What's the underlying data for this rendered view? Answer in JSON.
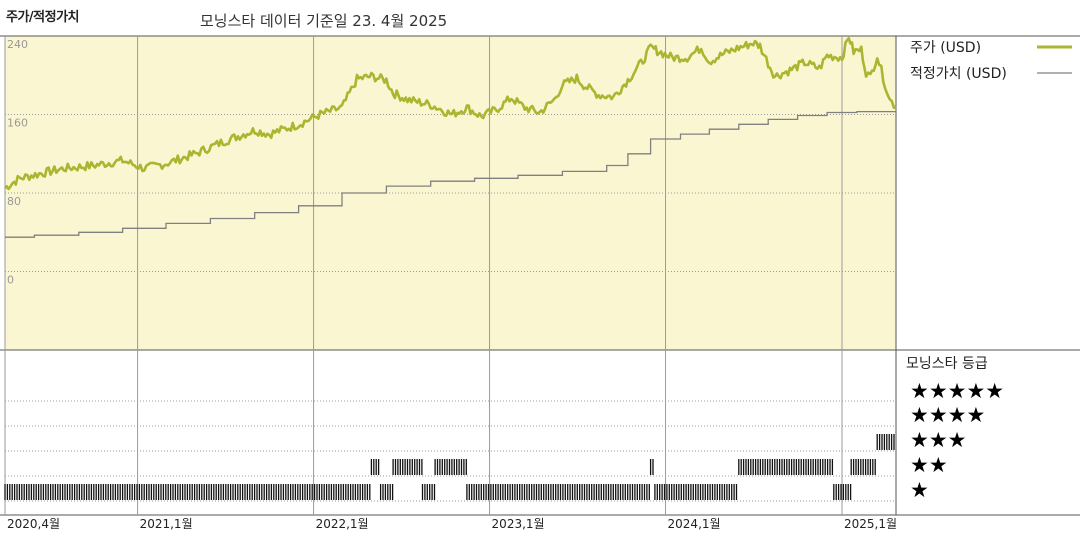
{
  "header": {
    "title": "주가/적정가치",
    "subtitle": "모닝스타 데이터 기준일 23. 4월 2025"
  },
  "rating_legend": {
    "title": "모닝스타 등급",
    "levels": [
      "★★★★★",
      "★★★★",
      "★★★",
      "★★",
      "★"
    ]
  },
  "colors": {
    "price": "#aab630",
    "fair": "#808080",
    "upper_bg": "#fbf6d2",
    "grid": "#9a9a9a"
  },
  "chart_data": {
    "type": "line",
    "title": "주가/적정가치",
    "subtitle": "모닝스타 데이터 기준일 23. 4월 2025",
    "x_range": [
      "2020-04-01",
      "2025-04-23"
    ],
    "y_ticks": [
      240,
      160,
      80,
      0
    ],
    "y_range": [
      -80,
      240
    ],
    "x_tick_labels": [
      {
        "date": "2020-04-01",
        "label": "2020,4월"
      },
      {
        "date": "2021-01-01",
        "label": "2021,1월"
      },
      {
        "date": "2022-01-01",
        "label": "2022,1월"
      },
      {
        "date": "2023-01-01",
        "label": "2023,1월"
      },
      {
        "date": "2024-01-01",
        "label": "2024,1월"
      },
      {
        "date": "2025-01-01",
        "label": "2025,1월"
      }
    ],
    "series": [
      {
        "name": "주가 (USD)",
        "points": [
          [
            "2020-04-01",
            85
          ],
          [
            "2020-05-01",
            95
          ],
          [
            "2020-06-15",
            100
          ],
          [
            "2020-08-01",
            105
          ],
          [
            "2020-10-01",
            108
          ],
          [
            "2020-12-01",
            113
          ],
          [
            "2021-01-15",
            105
          ],
          [
            "2021-03-01",
            110
          ],
          [
            "2021-05-01",
            120
          ],
          [
            "2021-07-01",
            133
          ],
          [
            "2021-09-01",
            144
          ],
          [
            "2021-10-01",
            140
          ],
          [
            "2021-12-01",
            150
          ],
          [
            "2022-01-15",
            160
          ],
          [
            "2022-03-01",
            167
          ],
          [
            "2022-04-01",
            196
          ],
          [
            "2022-05-01",
            199
          ],
          [
            "2022-06-01",
            195
          ],
          [
            "2022-06-15",
            182
          ],
          [
            "2022-07-15",
            175
          ],
          [
            "2022-09-01",
            170
          ],
          [
            "2022-10-15",
            160
          ],
          [
            "2022-11-15",
            167
          ],
          [
            "2022-12-15",
            158
          ],
          [
            "2023-01-15",
            165
          ],
          [
            "2023-02-15",
            177
          ],
          [
            "2023-03-15",
            167
          ],
          [
            "2023-04-15",
            162
          ],
          [
            "2023-05-15",
            175
          ],
          [
            "2023-06-01",
            190
          ],
          [
            "2023-07-01",
            197
          ],
          [
            "2023-07-15",
            190
          ],
          [
            "2023-08-15",
            180
          ],
          [
            "2023-09-15",
            178
          ],
          [
            "2023-10-15",
            195
          ],
          [
            "2023-11-15",
            215
          ],
          [
            "2023-12-01",
            228
          ],
          [
            "2023-12-15",
            225
          ],
          [
            "2024-01-15",
            218
          ],
          [
            "2024-02-15",
            218
          ],
          [
            "2024-03-15",
            228
          ],
          [
            "2024-04-01",
            214
          ],
          [
            "2024-05-01",
            222
          ],
          [
            "2024-06-01",
            228
          ],
          [
            "2024-07-01",
            233
          ],
          [
            "2024-07-15",
            230
          ],
          [
            "2024-08-01",
            212
          ],
          [
            "2024-08-15",
            199
          ],
          [
            "2024-09-15",
            205
          ],
          [
            "2024-10-15",
            213
          ],
          [
            "2024-11-15",
            207
          ],
          [
            "2024-12-01",
            220
          ],
          [
            "2025-01-01",
            218
          ],
          [
            "2025-01-15",
            240
          ],
          [
            "2025-01-25",
            224
          ],
          [
            "2025-02-10",
            226
          ],
          [
            "2025-02-20",
            203
          ],
          [
            "2025-03-01",
            198
          ],
          [
            "2025-03-15",
            220
          ],
          [
            "2025-04-01",
            190
          ],
          [
            "2025-04-10",
            175
          ],
          [
            "2025-04-23",
            168
          ]
        ]
      },
      {
        "name": "적정가치 (USD)",
        "points": [
          [
            "2020-04-01",
            35
          ],
          [
            "2020-06-01",
            37
          ],
          [
            "2020-09-01",
            40
          ],
          [
            "2020-12-01",
            44
          ],
          [
            "2021-03-01",
            49
          ],
          [
            "2021-06-01",
            54
          ],
          [
            "2021-09-01",
            60
          ],
          [
            "2021-12-01",
            67
          ],
          [
            "2022-03-01",
            80
          ],
          [
            "2022-06-01",
            87
          ],
          [
            "2022-09-01",
            92
          ],
          [
            "2022-12-01",
            95
          ],
          [
            "2023-03-01",
            98
          ],
          [
            "2023-06-01",
            102
          ],
          [
            "2023-09-01",
            108
          ],
          [
            "2023-10-15",
            120
          ],
          [
            "2023-12-01",
            135
          ],
          [
            "2024-02-01",
            140
          ],
          [
            "2024-04-01",
            145
          ],
          [
            "2024-06-01",
            150
          ],
          [
            "2024-08-01",
            155
          ],
          [
            "2024-10-01",
            159
          ],
          [
            "2024-12-01",
            162
          ],
          [
            "2025-02-01",
            163
          ],
          [
            "2025-04-23",
            164
          ]
        ]
      }
    ],
    "rating_periods": [
      {
        "start": "2020-04-01",
        "end": "2022-05-01",
        "stars": 1
      },
      {
        "start": "2022-05-01",
        "end": "2022-05-20",
        "stars": 2
      },
      {
        "start": "2022-05-20",
        "end": "2022-06-15",
        "stars": 1
      },
      {
        "start": "2022-06-15",
        "end": "2022-08-15",
        "stars": 2
      },
      {
        "start": "2022-08-15",
        "end": "2022-09-10",
        "stars": 1
      },
      {
        "start": "2022-09-10",
        "end": "2022-11-15",
        "stars": 2
      },
      {
        "start": "2022-11-15",
        "end": "2023-12-01",
        "stars": 1
      },
      {
        "start": "2023-12-01",
        "end": "2023-12-10",
        "stars": 2
      },
      {
        "start": "2023-12-10",
        "end": "2024-06-01",
        "stars": 1
      },
      {
        "start": "2024-06-01",
        "end": "2024-12-15",
        "stars": 2
      },
      {
        "start": "2024-12-15",
        "end": "2025-01-20",
        "stars": 1
      },
      {
        "start": "2025-01-20",
        "end": "2025-03-15",
        "stars": 2
      },
      {
        "start": "2025-03-15",
        "end": "2025-04-23",
        "stars": 3
      }
    ]
  }
}
